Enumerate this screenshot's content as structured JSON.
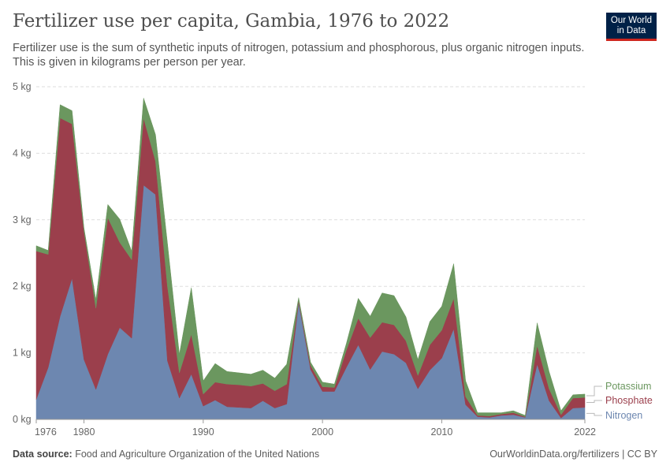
{
  "header": {
    "title": "Fertilizer use per capita, Gambia, 1976 to 2022",
    "subtitle": "Fertilizer use is the sum of synthetic inputs of nitrogen, potassium and phosphorous, plus organic nitrogen inputs. This is given in kilograms per person per year."
  },
  "logo": {
    "line1": "Our World",
    "line2": "in Data",
    "bg": "#002147",
    "accent": "#ce261e"
  },
  "footer": {
    "source_label": "Data source:",
    "source_text": "Food and Agriculture Organization of the United Nations",
    "link_text": "OurWorldinData.org/fertilizers | CC BY"
  },
  "chart_data": {
    "type": "area",
    "stacked": true,
    "x": [
      1976,
      1977,
      1978,
      1979,
      1980,
      1981,
      1982,
      1983,
      1984,
      1985,
      1986,
      1987,
      1988,
      1989,
      1990,
      1991,
      1992,
      1993,
      1994,
      1995,
      1996,
      1997,
      1998,
      1999,
      2000,
      2001,
      2002,
      2003,
      2004,
      2005,
      2006,
      2007,
      2008,
      2009,
      2010,
      2011,
      2012,
      2013,
      2014,
      2015,
      2016,
      2017,
      2018,
      2019,
      2020,
      2021,
      2022
    ],
    "series": [
      {
        "name": "Nitrogen",
        "color": "#6d87b0",
        "values": [
          0.3,
          0.78,
          1.55,
          2.12,
          0.9,
          0.45,
          0.98,
          1.38,
          1.22,
          3.52,
          3.38,
          0.88,
          0.32,
          0.68,
          0.2,
          0.29,
          0.19,
          0.18,
          0.17,
          0.28,
          0.17,
          0.23,
          1.76,
          0.75,
          0.42,
          0.42,
          0.78,
          1.12,
          0.75,
          1.02,
          0.98,
          0.85,
          0.46,
          0.74,
          0.92,
          1.36,
          0.22,
          0.04,
          0.03,
          0.06,
          0.07,
          0.03,
          0.83,
          0.28,
          0.02,
          0.17,
          0.18
        ]
      },
      {
        "name": "Phosphate",
        "color": "#9b3f4c",
        "values": [
          2.23,
          1.7,
          2.98,
          2.32,
          1.93,
          1.22,
          2.05,
          1.28,
          1.18,
          1.01,
          0.5,
          1.12,
          0.38,
          0.6,
          0.18,
          0.27,
          0.34,
          0.34,
          0.33,
          0.26,
          0.26,
          0.3,
          0.03,
          0.06,
          0.07,
          0.06,
          0.26,
          0.4,
          0.48,
          0.44,
          0.44,
          0.33,
          0.2,
          0.38,
          0.42,
          0.46,
          0.12,
          0.02,
          0.02,
          0.02,
          0.03,
          0.01,
          0.28,
          0.18,
          0.05,
          0.15,
          0.15
        ]
      },
      {
        "name": "Potassium",
        "color": "#6b975f",
        "values": [
          0.08,
          0.06,
          0.2,
          0.2,
          0.05,
          0.13,
          0.2,
          0.35,
          0.13,
          0.3,
          0.4,
          0.65,
          0.28,
          0.7,
          0.2,
          0.28,
          0.19,
          0.18,
          0.18,
          0.2,
          0.19,
          0.3,
          0.04,
          0.05,
          0.07,
          0.05,
          0.1,
          0.3,
          0.32,
          0.44,
          0.44,
          0.36,
          0.24,
          0.35,
          0.36,
          0.52,
          0.24,
          0.04,
          0.05,
          0.02,
          0.03,
          0.02,
          0.34,
          0.26,
          0.06,
          0.05,
          0.05
        ]
      }
    ],
    "y_ticks": [
      "0 kg",
      "1 kg",
      "2 kg",
      "3 kg",
      "4 kg",
      "5 kg"
    ],
    "x_ticks": [
      "1976",
      "1980",
      "1990",
      "2000",
      "2010",
      "2022"
    ],
    "x_tick_values": [
      1976,
      1980,
      1990,
      2000,
      2010,
      2022
    ],
    "ylim": [
      0,
      5
    ],
    "xlim": [
      1976,
      2022
    ],
    "grid": true,
    "legend_placement": "right"
  }
}
